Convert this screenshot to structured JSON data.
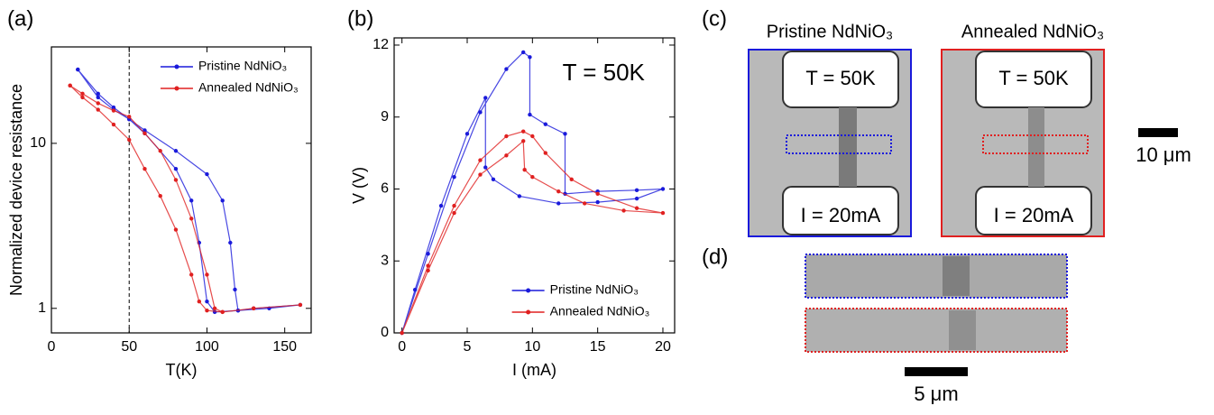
{
  "chart_data": [
    {
      "type": "line",
      "xlabel": "T(K)",
      "ylabel": "Normalized device resistance",
      "xlim": [
        0,
        167
      ],
      "xticks": [
        0,
        50,
        100,
        150
      ],
      "ylim": [
        0.71,
        38.4
      ],
      "yticks": [
        1,
        10
      ],
      "log_y": true,
      "vline": 50,
      "legend": "upper right",
      "series": [
        {
          "name": "Pristine NdNiO₃",
          "color": "#1a1adb",
          "x": [
            17,
            30,
            40,
            50,
            60,
            80,
            100,
            110,
            115,
            118,
            120,
            130,
            160,
            140,
            120,
            105,
            100,
            95,
            90,
            80,
            60,
            50,
            40,
            30,
            17
          ],
          "values": [
            28,
            20,
            16.5,
            14,
            12,
            9,
            6.5,
            4.5,
            2.5,
            1.3,
            0.97,
            1.0,
            1.05,
            1.0,
            0.97,
            0.95,
            1.1,
            2.5,
            4.5,
            7,
            11.5,
            14,
            16,
            19,
            28
          ]
        },
        {
          "name": "Annealed NdNiO₃",
          "color": "#e02020",
          "x": [
            12,
            20,
            30,
            40,
            50,
            60,
            70,
            80,
            90,
            100,
            105,
            110,
            130,
            160,
            130,
            110,
            100,
            95,
            90,
            80,
            70,
            60,
            50,
            40,
            30,
            20,
            12
          ],
          "values": [
            22.4,
            20,
            17.5,
            15.8,
            14.5,
            11.5,
            9,
            6,
            3.5,
            1.6,
            1.0,
            0.95,
            1.0,
            1.05,
            1.0,
            0.95,
            0.97,
            1.1,
            1.6,
            3,
            4.8,
            7,
            10.5,
            13,
            16,
            19,
            22.4
          ]
        }
      ]
    },
    {
      "type": "line",
      "xlabel": "I (mA)",
      "ylabel": "V (V)",
      "annotation": "T = 50K",
      "xlim": [
        -0.6,
        20.9
      ],
      "xticks": [
        0,
        5,
        10,
        15,
        20
      ],
      "ylim": [
        0,
        12.3
      ],
      "yticks": [
        0,
        3,
        6,
        9,
        12
      ],
      "legend": "lower right",
      "series": [
        {
          "name": "Pristine NdNiO₃",
          "color": "#1a1adb",
          "x": [
            0,
            2,
            4,
            6,
            8,
            9.3,
            9.8,
            9.8,
            11,
            12.5,
            12.5,
            15,
            18,
            20,
            18,
            15,
            12,
            9,
            7,
            6.4,
            6.4,
            5,
            3,
            1,
            0
          ],
          "values": [
            0,
            3.3,
            6.5,
            9.2,
            11.0,
            11.7,
            11.5,
            9.1,
            8.7,
            8.3,
            5.8,
            5.9,
            5.95,
            6.0,
            5.6,
            5.45,
            5.4,
            5.7,
            6.4,
            6.9,
            9.8,
            8.3,
            5.3,
            1.8,
            0
          ]
        },
        {
          "name": "Annealed NdNiO₃",
          "color": "#e02020",
          "x": [
            0,
            2,
            4,
            6,
            8,
            9.3,
            10,
            11,
            13,
            15,
            18,
            20,
            17,
            14,
            12,
            10,
            9.4,
            9.3,
            8,
            6,
            4,
            2,
            0
          ],
          "values": [
            0,
            2.8,
            5.3,
            7.2,
            8.2,
            8.4,
            8.2,
            7.5,
            6.4,
            5.8,
            5.2,
            5.0,
            5.1,
            5.4,
            5.9,
            6.5,
            6.8,
            8.0,
            7.4,
            6.6,
            5.0,
            2.6,
            0
          ]
        }
      ]
    }
  ],
  "panel_labels": [
    "(a)",
    "(b)",
    "(c)",
    "(d)"
  ],
  "micrographs": {
    "titles": [
      "Pristine NdNiO₃",
      "Annealed NdNiO₃"
    ],
    "temperature": "T = 50K",
    "current": "I = 20mA",
    "scale_c": "10 μm",
    "scale_d": "5 μm"
  }
}
